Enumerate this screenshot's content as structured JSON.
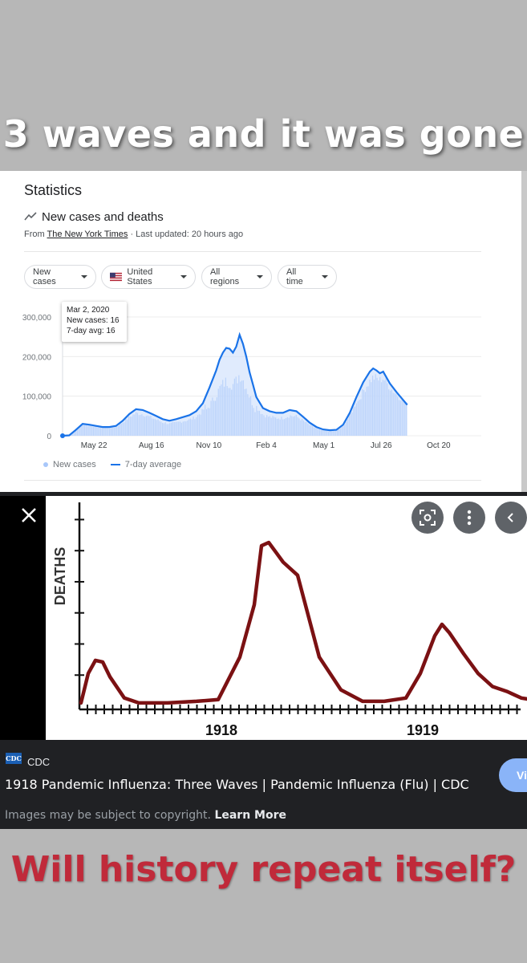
{
  "header_text": "3 waves and it was gone",
  "footer_text": "Will history repeat itself?",
  "stats": {
    "title": "Statistics",
    "series_title": "New cases and deaths",
    "source_prefix": "From ",
    "source_name": "The New York Times",
    "source_suffix": " · Last updated: 20 hours ago",
    "filters": [
      "New cases",
      "United States",
      "All regions",
      "All time"
    ],
    "tooltip": {
      "date": "Mar 2, 2020",
      "new_cases": "New cases: 16",
      "avg": "7-day avg: 16"
    },
    "legend": [
      "New cases",
      "7-day average"
    ]
  },
  "flu": {
    "source": "CDC",
    "logo_text": "CDC",
    "caption": "1918 Pandemic Influenza: Three Waves | Pandemic Influenza (Flu) | CDC",
    "copyright": "Images may be subject to copyright.",
    "learn_more": "Learn More",
    "visit_label": "Vi"
  },
  "colors": {
    "bars": "#aecbfa",
    "avg_line": "#1a73e8",
    "flu_line": "#7b1113"
  },
  "chart_data": [
    {
      "type": "area",
      "ylim": [
        0,
        300000
      ],
      "y_ticks": [
        "0",
        "100,000",
        "200,000",
        "300,000"
      ],
      "x_ticks": [
        "May 22",
        "Aug 16",
        "Nov 10",
        "Feb 4",
        "May 1",
        "Jul 26",
        "Oct 20"
      ],
      "x_tick_positions": [
        47,
        133,
        219,
        305,
        391,
        477,
        563
      ],
      "x_max": 610,
      "series": [
        {
          "name": "7-day average",
          "points": [
            [
              0,
              0
            ],
            [
              10,
              1000
            ],
            [
              20,
              15000
            ],
            [
              30,
              30000
            ],
            [
              40,
              28000
            ],
            [
              50,
              25000
            ],
            [
              60,
              22000
            ],
            [
              70,
              22000
            ],
            [
              80,
              25000
            ],
            [
              90,
              38000
            ],
            [
              100,
              55000
            ],
            [
              110,
              67000
            ],
            [
              120,
              65000
            ],
            [
              130,
              58000
            ],
            [
              140,
              50000
            ],
            [
              150,
              42000
            ],
            [
              160,
              38000
            ],
            [
              170,
              42000
            ],
            [
              180,
              47000
            ],
            [
              190,
              52000
            ],
            [
              200,
              62000
            ],
            [
              210,
              82000
            ],
            [
              220,
              122000
            ],
            [
              230,
              165000
            ],
            [
              235,
              192000
            ],
            [
              240,
              210000
            ],
            [
              245,
              222000
            ],
            [
              250,
              220000
            ],
            [
              255,
              210000
            ],
            [
              260,
              225000
            ],
            [
              265,
              255000
            ],
            [
              270,
              232000
            ],
            [
              275,
              200000
            ],
            [
              280,
              160000
            ],
            [
              285,
              130000
            ],
            [
              290,
              98000
            ],
            [
              300,
              70000
            ],
            [
              310,
              62000
            ],
            [
              320,
              58000
            ],
            [
              330,
              58000
            ],
            [
              340,
              65000
            ],
            [
              350,
              62000
            ],
            [
              360,
              48000
            ],
            [
              370,
              33000
            ],
            [
              380,
              22000
            ],
            [
              390,
              16000
            ],
            [
              400,
              14000
            ],
            [
              410,
              15000
            ],
            [
              420,
              28000
            ],
            [
              430,
              58000
            ],
            [
              440,
              98000
            ],
            [
              450,
              135000
            ],
            [
              460,
              162000
            ],
            [
              465,
              170000
            ],
            [
              470,
              165000
            ],
            [
              475,
              158000
            ],
            [
              480,
              162000
            ],
            [
              490,
              132000
            ],
            [
              500,
              110000
            ],
            [
              510,
              90000
            ],
            [
              516,
              78000
            ]
          ]
        }
      ]
    },
    {
      "type": "line",
      "title": "",
      "ylabel": "DEATHS",
      "x_ticks": [
        "1918",
        "1919"
      ],
      "series": [
        {
          "points": [
            [
              0,
              0.02
            ],
            [
              5,
              0.2
            ],
            [
              10,
              0.28
            ],
            [
              15,
              0.27
            ],
            [
              20,
              0.18
            ],
            [
              30,
              0.05
            ],
            [
              40,
              0.02
            ],
            [
              60,
              0.02
            ],
            [
              80,
              0.03
            ],
            [
              95,
              0.04
            ],
            [
              110,
              0.3
            ],
            [
              120,
              0.62
            ],
            [
              125,
              0.98
            ],
            [
              130,
              1.0
            ],
            [
              135,
              0.94
            ],
            [
              140,
              0.88
            ],
            [
              150,
              0.8
            ],
            [
              165,
              0.3
            ],
            [
              180,
              0.1
            ],
            [
              195,
              0.03
            ],
            [
              210,
              0.03
            ],
            [
              225,
              0.05
            ],
            [
              235,
              0.2
            ],
            [
              245,
              0.43
            ],
            [
              250,
              0.5
            ],
            [
              255,
              0.45
            ],
            [
              265,
              0.32
            ],
            [
              275,
              0.2
            ],
            [
              285,
              0.12
            ],
            [
              295,
              0.09
            ],
            [
              305,
              0.05
            ],
            [
              312,
              0.04
            ]
          ]
        }
      ]
    }
  ]
}
